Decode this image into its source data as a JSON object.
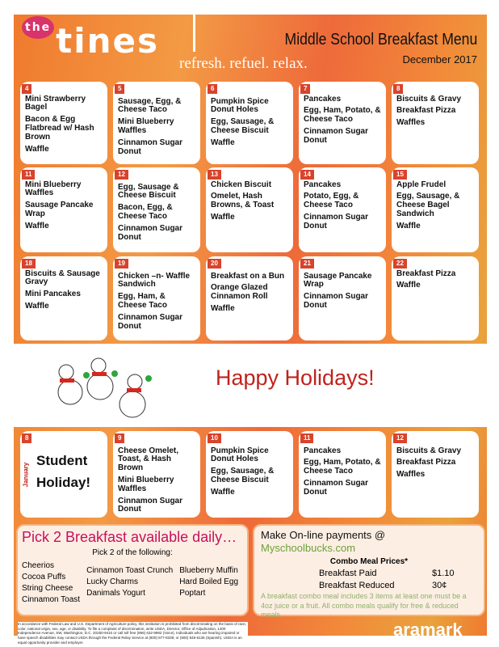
{
  "header": {
    "logo": "the tines",
    "logo_small": "the",
    "logo_big": "tines",
    "tagline": "refresh. refuel. relax.",
    "title": "Middle School Breakfast Menu",
    "date": "December 2017"
  },
  "weeks": [
    [
      {
        "day": "4",
        "items": [
          "Mini Strawberry Bagel",
          "Bacon & Egg Flatbread w/ Hash Brown",
          "Waffle"
        ]
      },
      {
        "day": "5",
        "items": [
          "Sausage, Egg, & Cheese Taco",
          "Mini Blueberry Waffles",
          "Cinnamon Sugar Donut"
        ]
      },
      {
        "day": "6",
        "items": [
          "Pumpkin Spice Donut Holes",
          "Egg, Sausage, & Cheese Biscuit",
          "Waffle"
        ]
      },
      {
        "day": "7",
        "items": [
          "Pancakes",
          "Egg, Ham, Potato, & Cheese Taco",
          "Cinnamon Sugar Donut"
        ]
      },
      {
        "day": "8",
        "items": [
          "Biscuits & Gravy",
          "Breakfast Pizza",
          "Waffles"
        ]
      }
    ],
    [
      {
        "day": "11",
        "items": [
          "Mini Blueberry Waffles",
          "Sausage Pancake Wrap",
          "Waffle"
        ]
      },
      {
        "day": "12",
        "items": [
          "Egg, Sausage & Cheese Biscuit",
          "Bacon, Egg, & Cheese Taco",
          "Cinnamon Sugar Donut"
        ]
      },
      {
        "day": "13",
        "items": [
          "Chicken Biscuit",
          "Omelet, Hash Browns, & Toast",
          "Waffle"
        ]
      },
      {
        "day": "14",
        "items": [
          "Pancakes",
          "Potato, Egg, & Cheese Taco",
          "Cinnamon Sugar Donut"
        ]
      },
      {
        "day": "15",
        "items": [
          "Apple Frudel",
          "Egg, Sausage, & Cheese Bagel Sandwich",
          "Waffle"
        ]
      }
    ],
    [
      {
        "day": "18",
        "items": [
          "Biscuits & Sausage Gravy",
          "Mini Pancakes",
          "Waffle"
        ]
      },
      {
        "day": "19",
        "items": [
          "Chicken –n- Waffle Sandwich",
          "Egg, Ham, & Cheese Taco",
          "Cinnamon Sugar Donut"
        ]
      },
      {
        "day": "20",
        "items": [
          "Breakfast on a Bun",
          "Orange Glazed Cinnamon Roll",
          "Waffle"
        ]
      },
      {
        "day": "21",
        "items": [
          "Sausage Pancake Wrap",
          "Cinnamon Sugar Donut"
        ]
      },
      {
        "day": "22",
        "items": [
          "Breakfast Pizza",
          "Waffle"
        ]
      }
    ]
  ],
  "holiday": {
    "text": "Happy Holidays!"
  },
  "january": {
    "month": "January",
    "first": {
      "day": "8",
      "text1": "Student",
      "text2": "Holiday!"
    },
    "days": [
      {
        "day": "9",
        "items": [
          "Cheese Omelet, Toast, & Hash Brown",
          "Mini Blueberry Waffles",
          "Cinnamon Sugar Donut"
        ]
      },
      {
        "day": "10",
        "items": [
          "Pumpkin Spice Donut Holes",
          "Egg, Sausage, & Cheese Biscuit",
          "Waffle"
        ]
      },
      {
        "day": "11",
        "items": [
          "Pancakes",
          "Egg, Ham, Potato, & Cheese Taco",
          "Cinnamon Sugar Donut"
        ]
      },
      {
        "day": "12",
        "items": [
          "Biscuits & Gravy",
          "Breakfast Pizza",
          "Waffles"
        ]
      }
    ]
  },
  "pick2": {
    "title": "Pick 2 Breakfast available daily…",
    "subtitle": "Pick 2 of the following:",
    "columns": [
      [
        "Cheerios",
        "Cocoa Puffs",
        "String Cheese",
        "Cinnamon Toast"
      ],
      [
        "Cinnamon Toast Crunch",
        "Lucky Charms",
        "Danimals Yogurt"
      ],
      [
        "Blueberry  Muffin",
        "Hard Boiled Egg",
        "Poptart"
      ]
    ]
  },
  "payments": {
    "prefix": "Make On-line payments @ ",
    "site": "Myschoolbucks.com",
    "combo_title": "Combo Meal Prices*",
    "prices": [
      {
        "label": "Breakfast Paid",
        "price": "$1.10"
      },
      {
        "label": "Breakfast Reduced",
        "price": "30¢"
      }
    ],
    "note": "A breakfast combo meal includes 3 items at least one must be a 4oz juice or a fruit.  All combo meals qualify for free & reduced meals."
  },
  "footer": {
    "legal": "In accordance with Federal Law and U.S. Department of Agriculture policy, this institution is prohibited from discriminating on the basis of race, color, national origin, sex, age, or disability. To file a complaint of discrimination, write USDA, Director, Office of Adjudication, 1400 Independence Avenue, SW, Washington, D.C. 20250-9410 or call toll free (866) 632-9992 (Voice). Individuals who are hearing impaired or have speech disabilities may contact USDA through the Federal Relay Service at (800) 877-8339; or (800) 845-6136 (Spanish). USDA is an equal opportunity provider and employer.",
    "brand": "aramark"
  },
  "colors": {
    "accent": "#d8432b",
    "pink": "#c8105f",
    "green": "#6aa23a",
    "holiday_red": "#c0221c"
  }
}
